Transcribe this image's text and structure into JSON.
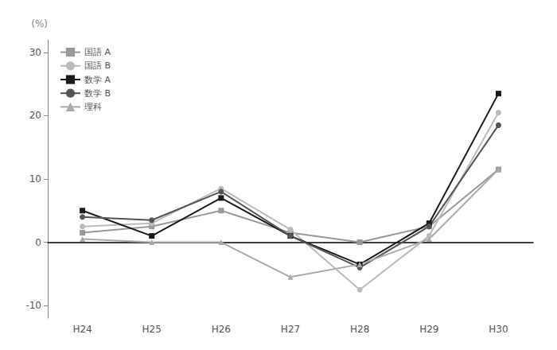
{
  "chart_data": {
    "type": "line",
    "categories": [
      "H24",
      "H25",
      "H26",
      "H27",
      "H28",
      "H29",
      "H30"
    ],
    "series": [
      {
        "name": "国語 A",
        "color": "#999999",
        "marker": "square",
        "values": [
          1.5,
          2.5,
          5.0,
          1.5,
          0.0,
          2.5,
          11.5
        ]
      },
      {
        "name": "国語 B",
        "color": "#bbbbbb",
        "marker": "circle",
        "values": [
          2.5,
          3.0,
          8.5,
          2.0,
          -7.5,
          1.0,
          20.5
        ]
      },
      {
        "name": "数学 A",
        "color": "#1a1a1a",
        "marker": "square",
        "values": [
          5.0,
          1.0,
          7.0,
          1.0,
          -3.5,
          3.0,
          23.5
        ]
      },
      {
        "name": "数学 B",
        "color": "#555555",
        "marker": "circle",
        "values": [
          4.0,
          3.5,
          8.0,
          1.0,
          -4.0,
          2.5,
          18.5
        ]
      },
      {
        "name": "理科",
        "color": "#aaaaaa",
        "marker": "triangle",
        "values": [
          0.5,
          0.0,
          0.0,
          -5.5,
          -3.5,
          0.5,
          11.5
        ]
      }
    ],
    "y_label": "(%)",
    "ylim": [
      -12,
      32
    ],
    "yticks": [
      -10,
      0,
      10,
      20,
      30
    ],
    "grid": false,
    "legend": "upper left"
  }
}
